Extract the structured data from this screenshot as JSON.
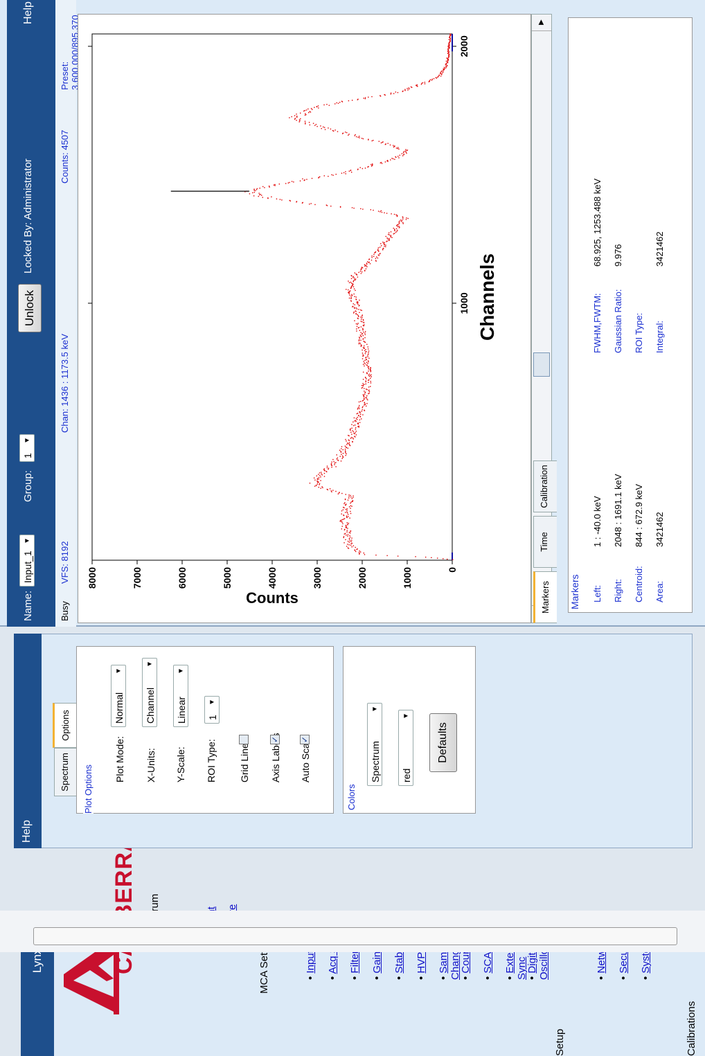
{
  "app": {
    "title": "Lynx",
    "logo_text": "CANBERRA",
    "brand_color": "#c8102e"
  },
  "nav": {
    "spectrum": {
      "heading": "Spectrum",
      "items": [
        "Print",
        "Save"
      ]
    },
    "mca": {
      "heading": "MCA Settings",
      "items": [
        "Inputs",
        "Acq Setup",
        "Filter",
        "Gain",
        "Stabilizer",
        "HVPS",
        "Sample Changer",
        "Counters",
        "SCAs",
        "External Sync",
        "Digital Oscilloscope"
      ]
    },
    "setup": {
      "heading": "Setup",
      "items": [
        "Network",
        "Security",
        "System"
      ]
    },
    "calibrations": {
      "heading": "Calibrations"
    }
  },
  "options_panel": {
    "help": "Help",
    "tabs": [
      "Spectrum",
      "Options"
    ],
    "active_tab": "Options",
    "plot_options": {
      "legend": "Plot Options",
      "plot_mode": {
        "label": "Plot Mode:",
        "value": "Normal"
      },
      "x_units": {
        "label": "X-Units:",
        "value": "Channel"
      },
      "y_scale": {
        "label": "Y-Scale:",
        "value": "Linear"
      },
      "roi_type": {
        "label": "ROI Type:",
        "value": "1"
      },
      "grid_lines": {
        "label": "Grid Lines",
        "checked": false
      },
      "axis_labels": {
        "label": "Axis Labels",
        "checked": true
      },
      "auto_scale": {
        "label": "Auto Scale",
        "checked": true
      }
    },
    "colors": {
      "legend": "Colors",
      "element": "Spectrum",
      "color": "red",
      "defaults_button": "Defaults"
    }
  },
  "spectrum_view": {
    "help": "Help",
    "name_label": "Name:",
    "name_value": "Input_1",
    "group_label": "Group:",
    "group_value": "1",
    "unlock_button": "Unlock",
    "locked_by": "Locked By: Administrator",
    "status": "Busy",
    "vfs": "VFS: 8192",
    "chan": "Chan: 1436 : 1173.5 keV",
    "counts": "Counts: 4507",
    "preset": "Preset: 3,600,000/895.370",
    "tabs": [
      "Markers",
      "Time",
      "Calibration"
    ],
    "active_tab": "Markers"
  },
  "markers": {
    "legend": "Markers",
    "left": {
      "label": "Left:",
      "value": "1 : -40.0 keV"
    },
    "right": {
      "label": "Right:",
      "value": "2048 : 1691.1 keV"
    },
    "centroid": {
      "label": "Centroid:",
      "value": "844 : 672.9 keV"
    },
    "area": {
      "label": "Area:",
      "value": "3421462"
    },
    "fwhm": {
      "label": "FWHM,FWTM:",
      "value": "68.925, 1253.488 keV"
    },
    "gaussian": {
      "label": "Gaussian Ratio:",
      "value": "9.976"
    },
    "roi_type": {
      "label": "ROI Type:",
      "value": ""
    },
    "integral": {
      "label": "Integral:",
      "value": "3421462"
    }
  },
  "chart_data": {
    "type": "scatter",
    "xlabel": "Channels",
    "ylabel": "Counts",
    "xlim": [
      0,
      2048
    ],
    "ylim": [
      0,
      8000
    ],
    "xticks": [
      1000,
      2000
    ],
    "yticks": [
      0,
      1000,
      2000,
      3000,
      4000,
      5000,
      6000,
      7000,
      8000
    ],
    "grid": false,
    "series_color": "#e00000",
    "x": [
      0,
      10,
      20,
      40,
      60,
      100,
      150,
      200,
      250,
      260,
      280,
      300,
      330,
      360,
      400,
      450,
      500,
      550,
      600,
      650,
      700,
      750,
      800,
      850,
      900,
      950,
      1000,
      1040,
      1080,
      1100,
      1130,
      1160,
      1200,
      1250,
      1300,
      1330,
      1360,
      1380,
      1400,
      1420,
      1436,
      1450,
      1480,
      1500,
      1530,
      1560,
      1590,
      1620,
      1660,
      1690,
      1720,
      1750,
      1770,
      1790,
      1800,
      1820,
      1850,
      1880,
      1920,
      1960,
      2000,
      2040,
      2047
    ],
    "y": [
      0,
      600,
      2000,
      2200,
      2300,
      2350,
      2400,
      2350,
      2300,
      2600,
      2900,
      3100,
      2900,
      2700,
      2500,
      2350,
      2200,
      2100,
      2000,
      1950,
      1900,
      1900,
      1950,
      2000,
      2050,
      2100,
      2150,
      2250,
      2300,
      2200,
      2000,
      1800,
      1650,
      1450,
      1200,
      1050,
      1700,
      2900,
      3800,
      4400,
      4507,
      4200,
      3300,
      2500,
      1900,
      1300,
      1000,
      1500,
      2400,
      3100,
      3500,
      3200,
      2800,
      2200,
      1800,
      1200,
      700,
      300,
      150,
      100,
      80,
      60,
      40
    ],
    "marker_line": {
      "x": 1436,
      "y_from": 4507,
      "y_to": 6250
    }
  }
}
